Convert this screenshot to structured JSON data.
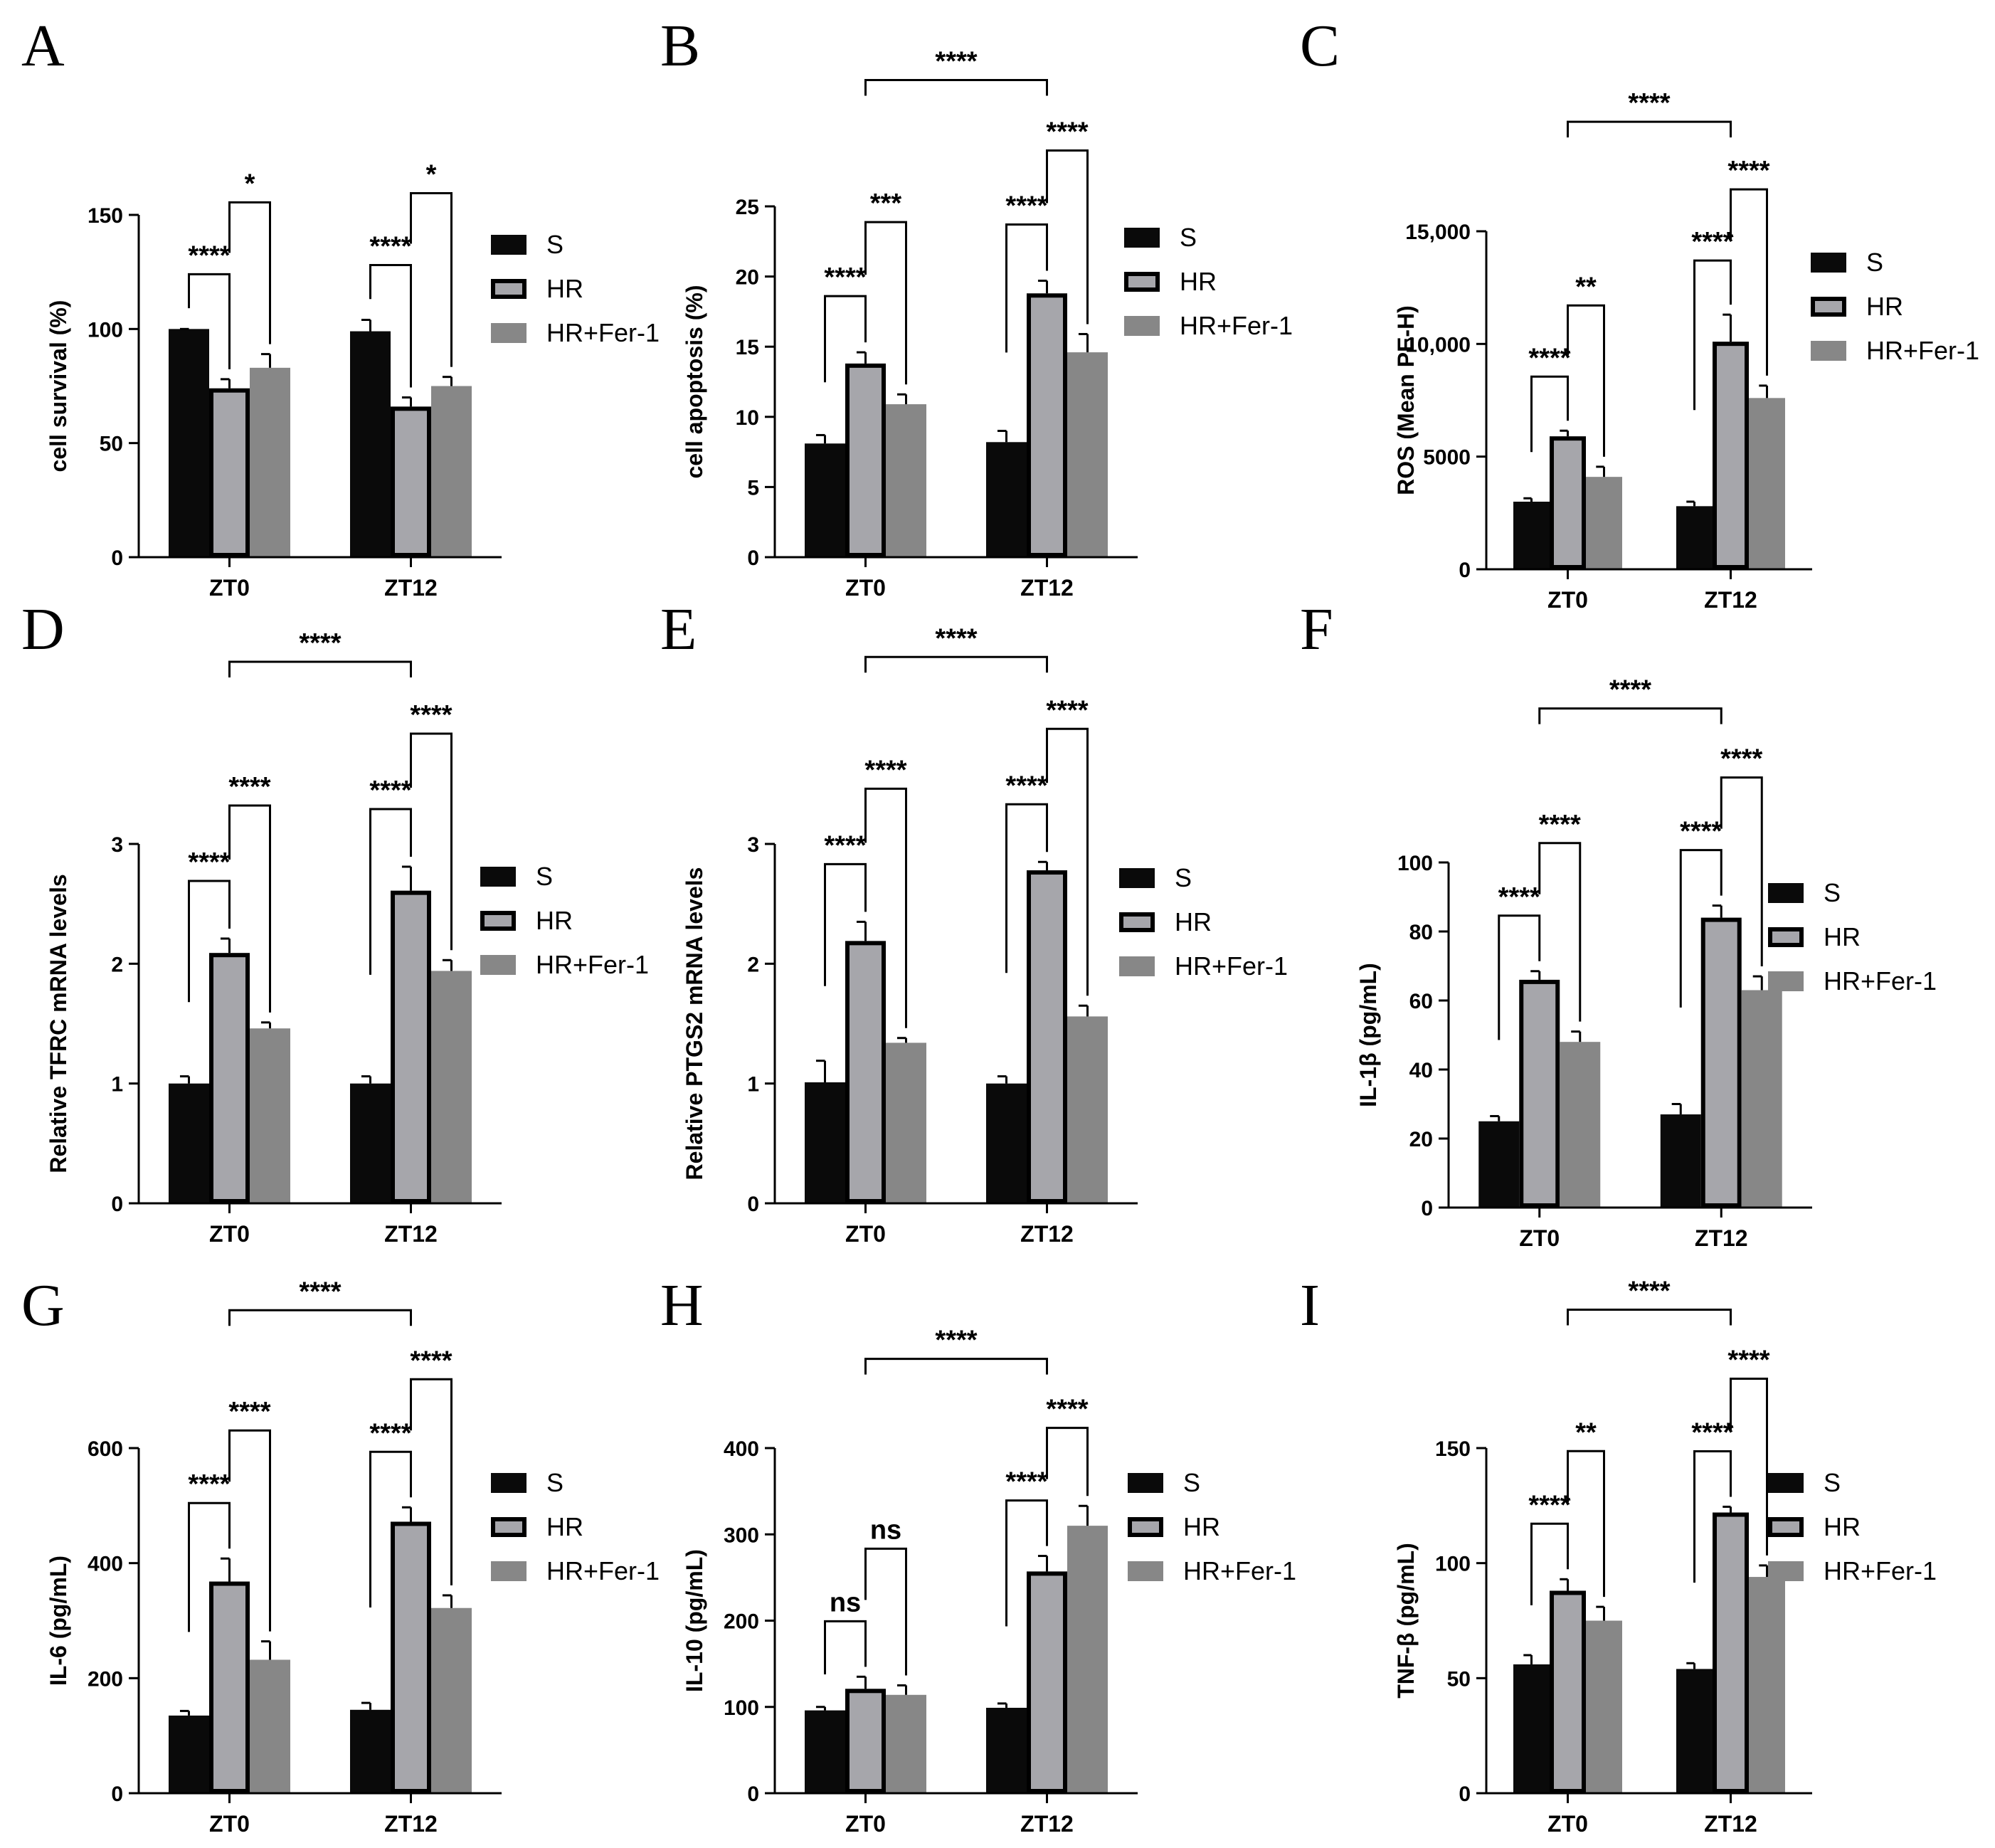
{
  "figure": {
    "legend": {
      "series": [
        "S",
        "HR",
        "HR+Fer-1"
      ]
    },
    "colors": {
      "S": "#0a0a0a",
      "HR": "#a6a6ab",
      "HR+Fer-1": "#878787",
      "axis": "#000000"
    }
  },
  "chart_data": [
    {
      "panel": "A",
      "type": "bar",
      "ylabel": "cell survival (%)",
      "categories": [
        "ZT0",
        "ZT12"
      ],
      "yticks": [
        0,
        50,
        100,
        150
      ],
      "ytick_labels": [
        "0",
        "50",
        "100",
        "150"
      ],
      "ylim": [
        0,
        150
      ],
      "series": [
        {
          "name": "S",
          "values": [
            100,
            99
          ],
          "errors": [
            0,
            5
          ]
        },
        {
          "name": "HR",
          "values": [
            74,
            66
          ],
          "errors": [
            4,
            4
          ]
        },
        {
          "name": "HR+Fer-1",
          "values": [
            83,
            75
          ],
          "errors": [
            6,
            4
          ]
        }
      ],
      "significance": [
        {
          "groups": [
            0,
            0,
            0,
            1
          ],
          "label": "****"
        },
        {
          "groups": [
            0,
            1,
            0,
            2
          ],
          "label": "*"
        },
        {
          "groups": [
            1,
            0,
            1,
            1
          ],
          "label": "****"
        },
        {
          "groups": [
            1,
            1,
            1,
            2
          ],
          "label": "*"
        }
      ]
    },
    {
      "panel": "B",
      "type": "bar",
      "ylabel": "cell apoptosis (%)",
      "categories": [
        "ZT0",
        "ZT12"
      ],
      "yticks": [
        0,
        5,
        10,
        15,
        20,
        25
      ],
      "ytick_labels": [
        "0",
        "5",
        "10",
        "15",
        "20",
        "25"
      ],
      "ylim": [
        0,
        25
      ],
      "series": [
        {
          "name": "S",
          "values": [
            8.1,
            8.2
          ],
          "errors": [
            0.6,
            0.8
          ]
        },
        {
          "name": "HR",
          "values": [
            13.8,
            18.8
          ],
          "errors": [
            0.8,
            0.9
          ]
        },
        {
          "name": "HR+Fer-1",
          "values": [
            10.9,
            14.6
          ],
          "errors": [
            0.7,
            1.3
          ]
        }
      ],
      "significance": [
        {
          "groups": [
            0,
            0,
            0,
            1
          ],
          "label": "****"
        },
        {
          "groups": [
            0,
            1,
            0,
            2
          ],
          "label": "***"
        },
        {
          "groups": [
            1,
            0,
            1,
            1
          ],
          "label": "****"
        },
        {
          "groups": [
            1,
            1,
            1,
            2
          ],
          "label": "****"
        },
        {
          "groups": [
            0,
            1,
            1,
            1
          ],
          "label": "****"
        }
      ]
    },
    {
      "panel": "C",
      "type": "bar",
      "ylabel": "ROS (Mean PE-H)",
      "categories": [
        "ZT0",
        "ZT12"
      ],
      "yticks": [
        0,
        5000,
        10000,
        15000
      ],
      "ytick_labels": [
        "0",
        "5000",
        "10,000",
        "15,000"
      ],
      "ylim": [
        0,
        15000
      ],
      "series": [
        {
          "name": "S",
          "values": [
            3000,
            2800
          ],
          "errors": [
            150,
            200
          ]
        },
        {
          "name": "HR",
          "values": [
            5900,
            10100
          ],
          "errors": [
            250,
            1200
          ]
        },
        {
          "name": "HR+Fer-1",
          "values": [
            4100,
            7600
          ],
          "errors": [
            450,
            550
          ]
        }
      ],
      "significance": [
        {
          "groups": [
            0,
            0,
            0,
            1
          ],
          "label": "****"
        },
        {
          "groups": [
            0,
            1,
            0,
            2
          ],
          "label": "**"
        },
        {
          "groups": [
            1,
            0,
            1,
            1
          ],
          "label": "****"
        },
        {
          "groups": [
            1,
            1,
            1,
            2
          ],
          "label": "****"
        },
        {
          "groups": [
            0,
            1,
            1,
            1
          ],
          "label": "****"
        }
      ]
    },
    {
      "panel": "D",
      "type": "bar",
      "ylabel": "Relative TFRC mRNA levels",
      "categories": [
        "ZT0",
        "ZT12"
      ],
      "yticks": [
        0,
        1,
        2,
        3
      ],
      "ytick_labels": [
        "0",
        "1",
        "2",
        "3"
      ],
      "ylim": [
        0,
        3
      ],
      "series": [
        {
          "name": "S",
          "values": [
            1.0,
            1.0
          ],
          "errors": [
            0.06,
            0.06
          ]
        },
        {
          "name": "HR",
          "values": [
            2.09,
            2.61
          ],
          "errors": [
            0.12,
            0.2
          ]
        },
        {
          "name": "HR+Fer-1",
          "values": [
            1.46,
            1.94
          ],
          "errors": [
            0.05,
            0.09
          ]
        }
      ],
      "significance": [
        {
          "groups": [
            0,
            0,
            0,
            1
          ],
          "label": "****"
        },
        {
          "groups": [
            0,
            1,
            0,
            2
          ],
          "label": "****"
        },
        {
          "groups": [
            1,
            0,
            1,
            1
          ],
          "label": "****"
        },
        {
          "groups": [
            1,
            1,
            1,
            2
          ],
          "label": "****"
        },
        {
          "groups": [
            0,
            1,
            1,
            1
          ],
          "label": "****"
        }
      ]
    },
    {
      "panel": "E",
      "type": "bar",
      "ylabel": "Relative PTGS2 mRNA levels",
      "categories": [
        "ZT0",
        "ZT12"
      ],
      "yticks": [
        0,
        1,
        2,
        3
      ],
      "ytick_labels": [
        "0",
        "1",
        "2",
        "3"
      ],
      "ylim": [
        0,
        3
      ],
      "series": [
        {
          "name": "S",
          "values": [
            1.01,
            1.0
          ],
          "errors": [
            0.18,
            0.06
          ]
        },
        {
          "name": "HR",
          "values": [
            2.19,
            2.78
          ],
          "errors": [
            0.16,
            0.07
          ]
        },
        {
          "name": "HR+Fer-1",
          "values": [
            1.34,
            1.56
          ],
          "errors": [
            0.04,
            0.09
          ]
        }
      ],
      "significance": [
        {
          "groups": [
            0,
            0,
            0,
            1
          ],
          "label": "****"
        },
        {
          "groups": [
            0,
            1,
            0,
            2
          ],
          "label": "****"
        },
        {
          "groups": [
            1,
            0,
            1,
            1
          ],
          "label": "****"
        },
        {
          "groups": [
            1,
            1,
            1,
            2
          ],
          "label": "****"
        },
        {
          "groups": [
            0,
            1,
            1,
            1
          ],
          "label": "****"
        }
      ]
    },
    {
      "panel": "F",
      "type": "bar",
      "ylabel": "IL-1β (pg/mL)",
      "categories": [
        "ZT0",
        "ZT12"
      ],
      "yticks": [
        0,
        20,
        40,
        60,
        80,
        100
      ],
      "ytick_labels": [
        "0",
        "20",
        "40",
        "60",
        "80",
        "100"
      ],
      "ylim": [
        0,
        100
      ],
      "series": [
        {
          "name": "S",
          "values": [
            25,
            27
          ],
          "errors": [
            1.5,
            3
          ]
        },
        {
          "name": "HR",
          "values": [
            66,
            84
          ],
          "errors": [
            2.5,
            3.5
          ]
        },
        {
          "name": "HR+Fer-1",
          "values": [
            48,
            63
          ],
          "errors": [
            3,
            4
          ]
        }
      ],
      "significance": [
        {
          "groups": [
            0,
            0,
            0,
            1
          ],
          "label": "****"
        },
        {
          "groups": [
            0,
            1,
            0,
            2
          ],
          "label": "****"
        },
        {
          "groups": [
            1,
            0,
            1,
            1
          ],
          "label": "****"
        },
        {
          "groups": [
            1,
            1,
            1,
            2
          ],
          "label": "****"
        },
        {
          "groups": [
            0,
            1,
            1,
            1
          ],
          "label": "****"
        }
      ]
    },
    {
      "panel": "G",
      "type": "bar",
      "ylabel": "IL-6 (pg/mL)",
      "categories": [
        "ZT0",
        "ZT12"
      ],
      "yticks": [
        0,
        200,
        400,
        600
      ],
      "ytick_labels": [
        "0",
        "200",
        "400",
        "600"
      ],
      "ylim": [
        0,
        600
      ],
      "series": [
        {
          "name": "S",
          "values": [
            135,
            145
          ],
          "errors": [
            8,
            12
          ]
        },
        {
          "name": "HR",
          "values": [
            368,
            472
          ],
          "errors": [
            40,
            25
          ]
        },
        {
          "name": "HR+Fer-1",
          "values": [
            232,
            322
          ],
          "errors": [
            32,
            22
          ]
        }
      ],
      "significance": [
        {
          "groups": [
            0,
            0,
            0,
            1
          ],
          "label": "****"
        },
        {
          "groups": [
            0,
            1,
            0,
            2
          ],
          "label": "****"
        },
        {
          "groups": [
            1,
            0,
            1,
            1
          ],
          "label": "****"
        },
        {
          "groups": [
            1,
            1,
            1,
            2
          ],
          "label": "****"
        },
        {
          "groups": [
            0,
            1,
            1,
            1
          ],
          "label": "****"
        }
      ]
    },
    {
      "panel": "H",
      "type": "bar",
      "ylabel": "IL-10 (pg/mL)",
      "categories": [
        "ZT0",
        "ZT12"
      ],
      "yticks": [
        0,
        100,
        200,
        300,
        400
      ],
      "ytick_labels": [
        "0",
        "100",
        "200",
        "300",
        "400"
      ],
      "ylim": [
        0,
        400
      ],
      "series": [
        {
          "name": "S",
          "values": [
            96,
            99
          ],
          "errors": [
            4,
            5
          ]
        },
        {
          "name": "HR",
          "values": [
            121,
            257
          ],
          "errors": [
            14,
            18
          ]
        },
        {
          "name": "HR+Fer-1",
          "values": [
            114,
            310
          ],
          "errors": [
            11,
            23
          ]
        }
      ],
      "significance": [
        {
          "groups": [
            0,
            0,
            0,
            1
          ],
          "label": "ns"
        },
        {
          "groups": [
            0,
            1,
            0,
            2
          ],
          "label": "ns"
        },
        {
          "groups": [
            1,
            0,
            1,
            1
          ],
          "label": "****"
        },
        {
          "groups": [
            1,
            1,
            1,
            2
          ],
          "label": "****"
        },
        {
          "groups": [
            0,
            1,
            1,
            1
          ],
          "label": "****"
        }
      ]
    },
    {
      "panel": "I",
      "type": "bar",
      "ylabel": "TNF-β (pg/mL)",
      "categories": [
        "ZT0",
        "ZT12"
      ],
      "yticks": [
        0,
        50,
        100,
        150
      ],
      "ytick_labels": [
        "0",
        "50",
        "100",
        "150"
      ],
      "ylim": [
        0,
        150
      ],
      "series": [
        {
          "name": "S",
          "values": [
            56,
            54
          ],
          "errors": [
            4,
            2.5
          ]
        },
        {
          "name": "HR",
          "values": [
            88,
            122
          ],
          "errors": [
            5,
            2.5
          ]
        },
        {
          "name": "HR+Fer-1",
          "values": [
            75,
            94
          ],
          "errors": [
            6,
            5
          ]
        }
      ],
      "significance": [
        {
          "groups": [
            0,
            0,
            0,
            1
          ],
          "label": "****"
        },
        {
          "groups": [
            0,
            1,
            0,
            2
          ],
          "label": "**"
        },
        {
          "groups": [
            1,
            0,
            1,
            1
          ],
          "label": "****"
        },
        {
          "groups": [
            1,
            1,
            1,
            2
          ],
          "label": "****"
        },
        {
          "groups": [
            0,
            1,
            1,
            1
          ],
          "label": "****"
        }
      ]
    }
  ]
}
